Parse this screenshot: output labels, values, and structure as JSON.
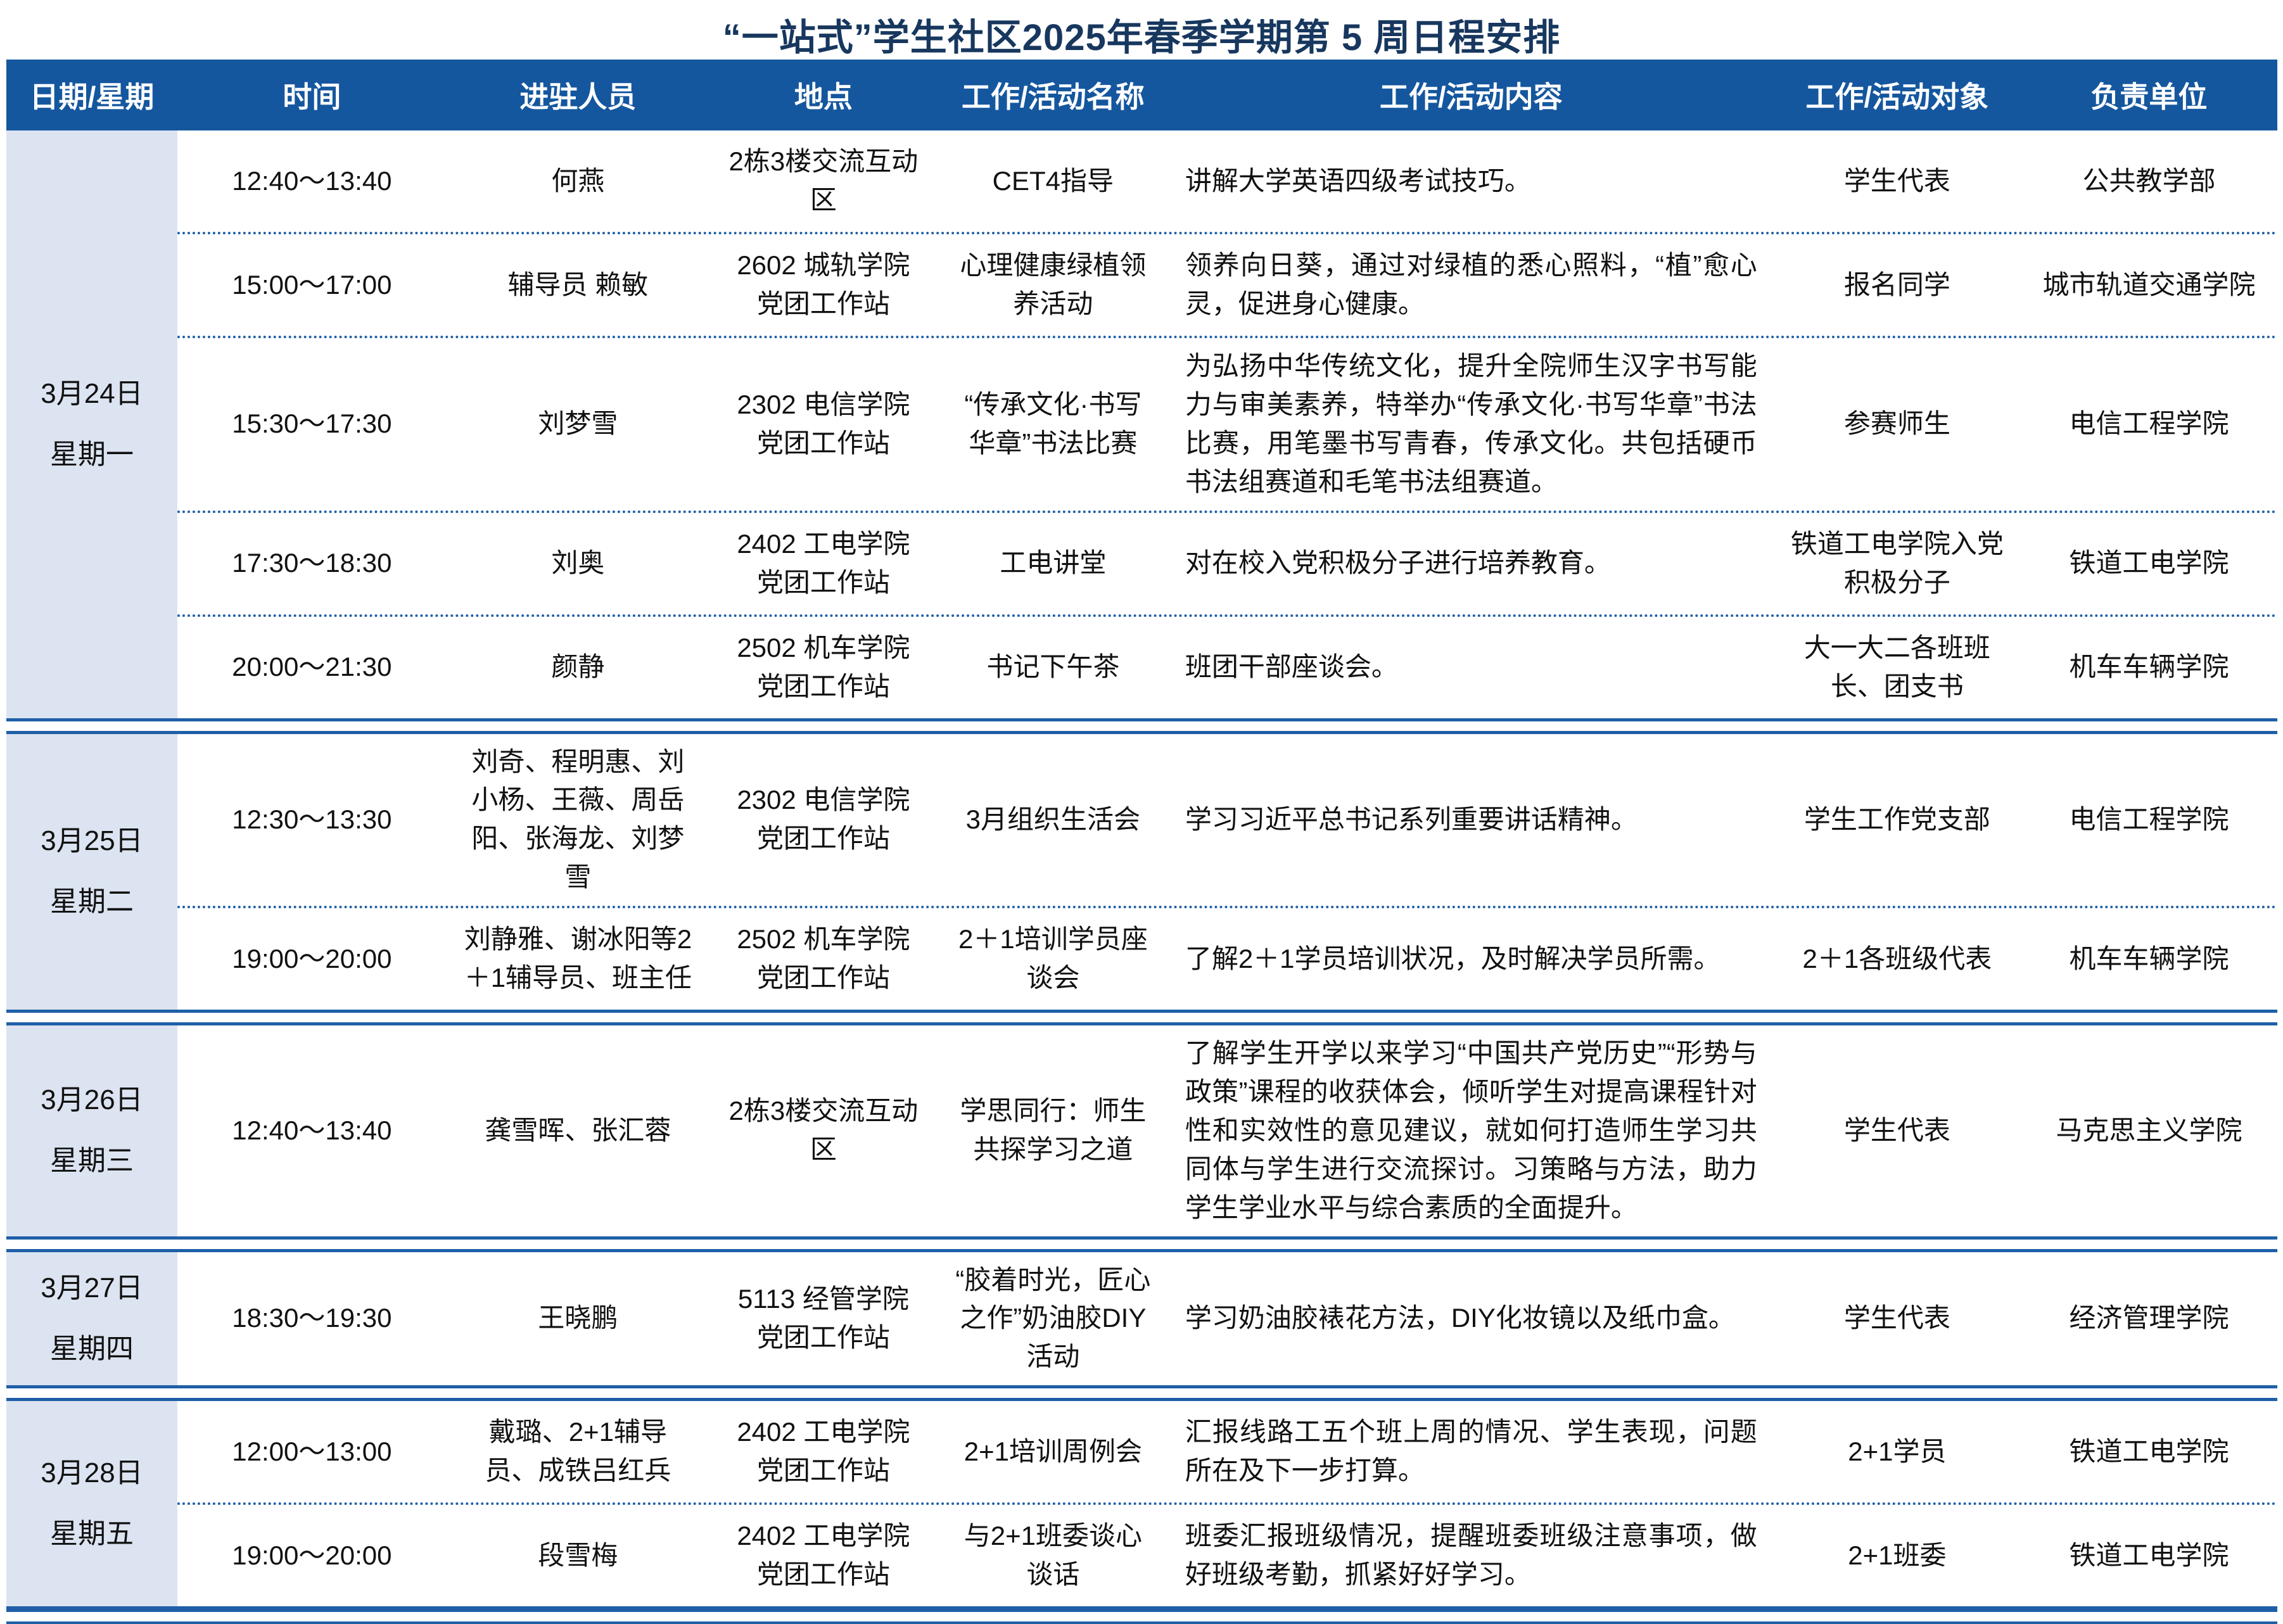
{
  "title": "“一站式”学生社区2025年春季学期第 5 周日程安排",
  "table": {
    "columns": [
      "日期/星期",
      "时间",
      "进驻人员",
      "地点",
      "工作/活动名称",
      "工作/活动内容",
      "工作/活动对象",
      "负责单位"
    ],
    "groups": [
      {
        "date": "3月24日",
        "weekday": "星期一",
        "rows": [
          {
            "time": "12:40～13:40",
            "people": "何燕",
            "location": "2栋3楼交流互动区",
            "name": "CET4指导",
            "content": "讲解大学英语四级考试技巧。",
            "target": "学生代表",
            "unit": "公共教学部"
          },
          {
            "time": "15:00～17:00",
            "people": "辅导员 赖敏",
            "location": "2602 城轨学院党团工作站",
            "name": "心理健康绿植领养活动",
            "content": "领养向日葵，通过对绿植的悉心照料，“植”愈心灵，促进身心健康。",
            "target": "报名同学",
            "unit": "城市轨道交通学院"
          },
          {
            "time": "15:30～17:30",
            "people": "刘梦雪",
            "location": "2302 电信学院党团工作站",
            "name": "“传承文化·书写华章”书法比赛",
            "content": "为弘扬中华传统文化，提升全院师生汉字书写能力与审美素养，特举办“传承文化·书写华章”书法比赛，用笔墨书写青春，传承文化。共包括硬币书法组赛道和毛笔书法组赛道。",
            "target": "参赛师生",
            "unit": "电信工程学院"
          },
          {
            "time": "17:30～18:30",
            "people": "刘奥",
            "location": "2402 工电学院党团工作站",
            "name": "工电讲堂",
            "content": "对在校入党积极分子进行培养教育。",
            "target": "铁道工电学院入党积极分子",
            "unit": "铁道工电学院"
          },
          {
            "time": "20:00～21:30",
            "people": "颜静",
            "location": "2502 机车学院党团工作站",
            "name": "书记下午茶",
            "content": "班团干部座谈会。",
            "target": "大一大二各班班长、团支书",
            "unit": "机车车辆学院"
          }
        ]
      },
      {
        "date": "3月25日",
        "weekday": "星期二",
        "rows": [
          {
            "time": "12:30～13:30",
            "people": "刘奇、程明惠、刘小杨、王薇、周岳阳、张海龙、刘梦雪",
            "location": "2302 电信学院党团工作站",
            "name": "3月组织生活会",
            "content": "学习习近平总书记系列重要讲话精神。",
            "target": "学生工作党支部",
            "unit": "电信工程学院"
          },
          {
            "time": "19:00～20:00",
            "people": "刘静雅、谢冰阳等2＋1辅导员、班主任",
            "location": "2502 机车学院党团工作站",
            "name": "2＋1培训学员座谈会",
            "content": "了解2＋1学员培训状况，及时解决学员所需。",
            "target": "2＋1各班级代表",
            "unit": "机车车辆学院"
          }
        ]
      },
      {
        "date": "3月26日",
        "weekday": "星期三",
        "rows": [
          {
            "time": "12:40～13:40",
            "people": "龚雪晖、张汇蓉",
            "location": "2栋3楼交流互动区",
            "name": "学思同行：师生共探学习之道",
            "content": "了解学生开学以来学习“中国共产党历史”“形势与政策”课程的收获体会，倾听学生对提高课程针对性和实效性的意见建议，就如何打造师生学习共同体与学生进行交流探讨。习策略与方法，助力学生学业水平与综合素质的全面提升。",
            "target": "学生代表",
            "unit": "马克思主义学院"
          }
        ]
      },
      {
        "date": "3月27日",
        "weekday": "星期四",
        "rows": [
          {
            "time": "18:30～19:30",
            "people": "王晓鹏",
            "location": "5113 经管学院党团工作站",
            "name": "“胶着时光，匠心之作”奶油胶DIY活动",
            "content": "学习奶油胶裱花方法，DIY化妆镜以及纸巾盒。",
            "target": "学生代表",
            "unit": "经济管理学院"
          }
        ]
      },
      {
        "date": "3月28日",
        "weekday": "星期五",
        "rows": [
          {
            "time": "12:00～13:00",
            "people": "戴璐、2+1辅导员、成铁吕红兵",
            "location": "2402 工电学院党团工作站",
            "name": "2+1培训周例会",
            "content": "汇报线路工五个班上周的情况、学生表现，问题所在及下一步打算。",
            "target": "2+1学员",
            "unit": "铁道工电学院"
          },
          {
            "time": "19:00～20:00",
            "people": "段雪梅",
            "location": "2402 工电学院党团工作站",
            "name": "与2+1班委谈心谈话",
            "content": "班委汇报班级情况，提醒班委班级注意事项，做好班级考勤，抓紧好好学习。",
            "target": "2+1班委",
            "unit": "铁道工电学院"
          }
        ]
      }
    ]
  }
}
